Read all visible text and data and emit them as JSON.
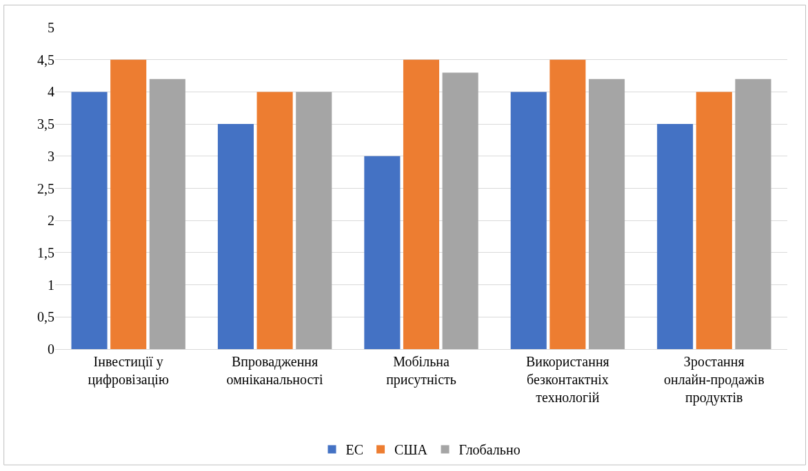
{
  "chart_data": {
    "type": "bar",
    "categories": [
      "Інвестиції у\nцифровізацію",
      "Впровадження\nомніканальності",
      "Мобільна\nприсутність",
      "Використання\nбезконтактніх\nтехнологій",
      "Зростання\nонлайн-продажів\nпродуктів"
    ],
    "series": [
      {
        "name": "ЕС",
        "color": "#4472c4",
        "values": [
          4,
          3.5,
          3,
          4,
          3.5
        ]
      },
      {
        "name": "США",
        "color": "#ed7d31",
        "values": [
          4.5,
          4,
          4.5,
          4.5,
          4
        ]
      },
      {
        "name": "Глобально",
        "color": "#a5a5a5",
        "values": [
          4.2,
          4,
          4.3,
          4.2,
          4.2
        ]
      }
    ],
    "ylim": [
      0,
      5
    ],
    "yticks": [
      0,
      {
        "value": 0.5,
        "label": "0,5"
      },
      1,
      {
        "value": 1.5,
        "label": "1,5"
      },
      2,
      {
        "value": 2.5,
        "label": "2,5"
      },
      3,
      {
        "value": 3.5,
        "label": "3,5"
      },
      4,
      {
        "value": 4.5,
        "label": "4,5"
      },
      5
    ],
    "grid": "y",
    "legend": "bottom"
  }
}
